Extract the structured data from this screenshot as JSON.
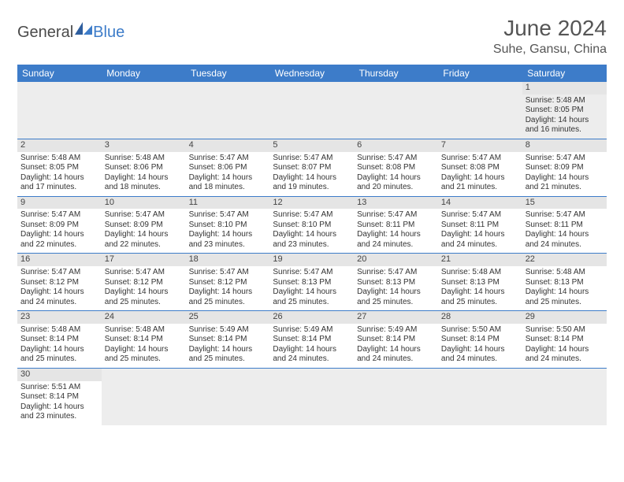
{
  "brand": {
    "part1": "General",
    "part2": "Blue"
  },
  "title": "June 2024",
  "location": "Suhe, Gansu, China",
  "colors": {
    "header_bg": "#3d7cc9",
    "header_text": "#ffffff",
    "day_bar": "#e5e5e5",
    "rule": "#3d7cc9",
    "title_color": "#555555"
  },
  "weekdays": [
    "Sunday",
    "Monday",
    "Tuesday",
    "Wednesday",
    "Thursday",
    "Friday",
    "Saturday"
  ],
  "weeks": [
    [
      null,
      null,
      null,
      null,
      null,
      null,
      {
        "n": "1",
        "sr": "Sunrise: 5:48 AM",
        "ss": "Sunset: 8:05 PM",
        "d1": "Daylight: 14 hours",
        "d2": "and 16 minutes."
      }
    ],
    [
      {
        "n": "2",
        "sr": "Sunrise: 5:48 AM",
        "ss": "Sunset: 8:05 PM",
        "d1": "Daylight: 14 hours",
        "d2": "and 17 minutes."
      },
      {
        "n": "3",
        "sr": "Sunrise: 5:48 AM",
        "ss": "Sunset: 8:06 PM",
        "d1": "Daylight: 14 hours",
        "d2": "and 18 minutes."
      },
      {
        "n": "4",
        "sr": "Sunrise: 5:47 AM",
        "ss": "Sunset: 8:06 PM",
        "d1": "Daylight: 14 hours",
        "d2": "and 18 minutes."
      },
      {
        "n": "5",
        "sr": "Sunrise: 5:47 AM",
        "ss": "Sunset: 8:07 PM",
        "d1": "Daylight: 14 hours",
        "d2": "and 19 minutes."
      },
      {
        "n": "6",
        "sr": "Sunrise: 5:47 AM",
        "ss": "Sunset: 8:08 PM",
        "d1": "Daylight: 14 hours",
        "d2": "and 20 minutes."
      },
      {
        "n": "7",
        "sr": "Sunrise: 5:47 AM",
        "ss": "Sunset: 8:08 PM",
        "d1": "Daylight: 14 hours",
        "d2": "and 21 minutes."
      },
      {
        "n": "8",
        "sr": "Sunrise: 5:47 AM",
        "ss": "Sunset: 8:09 PM",
        "d1": "Daylight: 14 hours",
        "d2": "and 21 minutes."
      }
    ],
    [
      {
        "n": "9",
        "sr": "Sunrise: 5:47 AM",
        "ss": "Sunset: 8:09 PM",
        "d1": "Daylight: 14 hours",
        "d2": "and 22 minutes."
      },
      {
        "n": "10",
        "sr": "Sunrise: 5:47 AM",
        "ss": "Sunset: 8:09 PM",
        "d1": "Daylight: 14 hours",
        "d2": "and 22 minutes."
      },
      {
        "n": "11",
        "sr": "Sunrise: 5:47 AM",
        "ss": "Sunset: 8:10 PM",
        "d1": "Daylight: 14 hours",
        "d2": "and 23 minutes."
      },
      {
        "n": "12",
        "sr": "Sunrise: 5:47 AM",
        "ss": "Sunset: 8:10 PM",
        "d1": "Daylight: 14 hours",
        "d2": "and 23 minutes."
      },
      {
        "n": "13",
        "sr": "Sunrise: 5:47 AM",
        "ss": "Sunset: 8:11 PM",
        "d1": "Daylight: 14 hours",
        "d2": "and 24 minutes."
      },
      {
        "n": "14",
        "sr": "Sunrise: 5:47 AM",
        "ss": "Sunset: 8:11 PM",
        "d1": "Daylight: 14 hours",
        "d2": "and 24 minutes."
      },
      {
        "n": "15",
        "sr": "Sunrise: 5:47 AM",
        "ss": "Sunset: 8:11 PM",
        "d1": "Daylight: 14 hours",
        "d2": "and 24 minutes."
      }
    ],
    [
      {
        "n": "16",
        "sr": "Sunrise: 5:47 AM",
        "ss": "Sunset: 8:12 PM",
        "d1": "Daylight: 14 hours",
        "d2": "and 24 minutes."
      },
      {
        "n": "17",
        "sr": "Sunrise: 5:47 AM",
        "ss": "Sunset: 8:12 PM",
        "d1": "Daylight: 14 hours",
        "d2": "and 25 minutes."
      },
      {
        "n": "18",
        "sr": "Sunrise: 5:47 AM",
        "ss": "Sunset: 8:12 PM",
        "d1": "Daylight: 14 hours",
        "d2": "and 25 minutes."
      },
      {
        "n": "19",
        "sr": "Sunrise: 5:47 AM",
        "ss": "Sunset: 8:13 PM",
        "d1": "Daylight: 14 hours",
        "d2": "and 25 minutes."
      },
      {
        "n": "20",
        "sr": "Sunrise: 5:47 AM",
        "ss": "Sunset: 8:13 PM",
        "d1": "Daylight: 14 hours",
        "d2": "and 25 minutes."
      },
      {
        "n": "21",
        "sr": "Sunrise: 5:48 AM",
        "ss": "Sunset: 8:13 PM",
        "d1": "Daylight: 14 hours",
        "d2": "and 25 minutes."
      },
      {
        "n": "22",
        "sr": "Sunrise: 5:48 AM",
        "ss": "Sunset: 8:13 PM",
        "d1": "Daylight: 14 hours",
        "d2": "and 25 minutes."
      }
    ],
    [
      {
        "n": "23",
        "sr": "Sunrise: 5:48 AM",
        "ss": "Sunset: 8:14 PM",
        "d1": "Daylight: 14 hours",
        "d2": "and 25 minutes."
      },
      {
        "n": "24",
        "sr": "Sunrise: 5:48 AM",
        "ss": "Sunset: 8:14 PM",
        "d1": "Daylight: 14 hours",
        "d2": "and 25 minutes."
      },
      {
        "n": "25",
        "sr": "Sunrise: 5:49 AM",
        "ss": "Sunset: 8:14 PM",
        "d1": "Daylight: 14 hours",
        "d2": "and 25 minutes."
      },
      {
        "n": "26",
        "sr": "Sunrise: 5:49 AM",
        "ss": "Sunset: 8:14 PM",
        "d1": "Daylight: 14 hours",
        "d2": "and 24 minutes."
      },
      {
        "n": "27",
        "sr": "Sunrise: 5:49 AM",
        "ss": "Sunset: 8:14 PM",
        "d1": "Daylight: 14 hours",
        "d2": "and 24 minutes."
      },
      {
        "n": "28",
        "sr": "Sunrise: 5:50 AM",
        "ss": "Sunset: 8:14 PM",
        "d1": "Daylight: 14 hours",
        "d2": "and 24 minutes."
      },
      {
        "n": "29",
        "sr": "Sunrise: 5:50 AM",
        "ss": "Sunset: 8:14 PM",
        "d1": "Daylight: 14 hours",
        "d2": "and 24 minutes."
      }
    ],
    [
      {
        "n": "30",
        "sr": "Sunrise: 5:51 AM",
        "ss": "Sunset: 8:14 PM",
        "d1": "Daylight: 14 hours",
        "d2": "and 23 minutes."
      },
      null,
      null,
      null,
      null,
      null,
      null
    ]
  ]
}
